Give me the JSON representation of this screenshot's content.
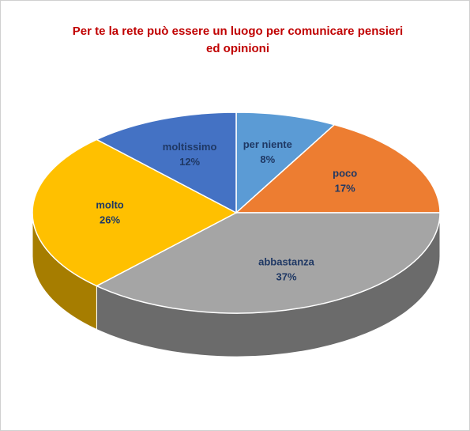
{
  "chart_data": {
    "type": "pie3d",
    "title": "Per te la rete può essere un luogo per comunicare pensieri ed opinioni",
    "categories": [
      "per niente",
      "poco",
      "abbastanza",
      "molto",
      "moltissimo"
    ],
    "values": [
      8,
      17,
      37,
      26,
      12
    ],
    "value_labels": [
      "8%",
      "17%",
      "37%",
      "26%",
      "12%"
    ],
    "colors": [
      "#5b9bd5",
      "#ed7d31",
      "#a5a5a5",
      "#ffc000",
      "#4472c4"
    ]
  }
}
